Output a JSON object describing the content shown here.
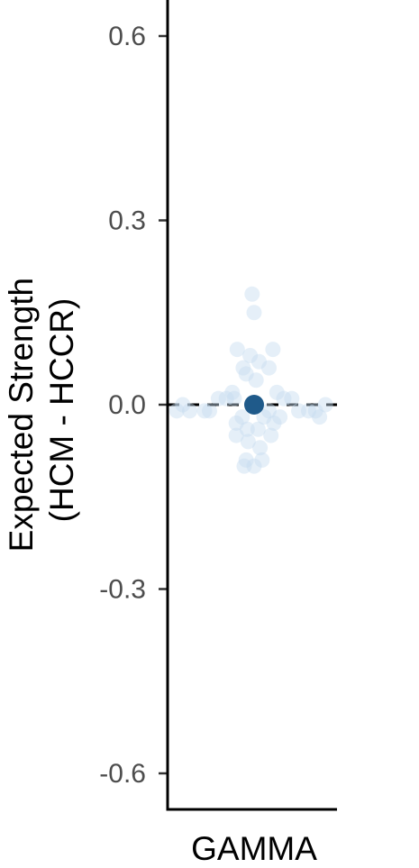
{
  "chart_data": {
    "type": "scatter",
    "ylabel_lines": [
      "Expected Strength",
      "(HCM - HCCR)"
    ],
    "xlabel": "",
    "categories": [
      "GAMMA"
    ],
    "ylim": [
      -0.66,
      0.66
    ],
    "yticks": [
      -0.6,
      -0.3,
      0.0,
      0.3,
      0.6
    ],
    "ytick_labels": [
      "-0.6",
      "-0.3",
      "0.0",
      "0.3",
      "0.6"
    ],
    "reference_line": {
      "y": 0.0,
      "style": "dashed",
      "color": "#000000"
    },
    "grid": false,
    "series": [
      {
        "role": "observations",
        "color": "#c6dbef",
        "category": "GAMMA",
        "points": [
          {
            "dx": -0.02,
            "y": 0.18
          },
          {
            "dx": 0.0,
            "y": 0.15
          },
          {
            "dx": -0.17,
            "y": 0.09
          },
          {
            "dx": 0.19,
            "y": 0.09
          },
          {
            "dx": -0.04,
            "y": 0.08
          },
          {
            "dx": 0.05,
            "y": 0.07
          },
          {
            "dx": -0.11,
            "y": 0.06
          },
          {
            "dx": 0.15,
            "y": 0.06
          },
          {
            "dx": -0.08,
            "y": 0.05
          },
          {
            "dx": 0.02,
            "y": 0.04
          },
          {
            "dx": -0.22,
            "y": 0.02
          },
          {
            "dx": 0.23,
            "y": 0.02
          },
          {
            "dx": -0.36,
            "y": 0.01
          },
          {
            "dx": -0.28,
            "y": 0.01
          },
          {
            "dx": -0.2,
            "y": 0.01
          },
          {
            "dx": 0.3,
            "y": 0.01
          },
          {
            "dx": 0.38,
            "y": 0.01
          },
          {
            "dx": 0.72,
            "y": 0.0
          },
          {
            "dx": -0.72,
            "y": 0.0
          },
          {
            "dx": 0.62,
            "y": -0.01
          },
          {
            "dx": -0.65,
            "y": -0.01
          },
          {
            "dx": 0.45,
            "y": -0.01
          },
          {
            "dx": -0.5,
            "y": -0.01
          },
          {
            "dx": 0.15,
            "y": -0.01
          },
          {
            "dx": -0.45,
            "y": -0.01
          },
          {
            "dx": 0.55,
            "y": -0.01
          },
          {
            "dx": -0.78,
            "y": -0.01
          },
          {
            "dx": 0.66,
            "y": -0.02
          },
          {
            "dx": 0.26,
            "y": -0.02
          },
          {
            "dx": -0.12,
            "y": -0.02
          },
          {
            "dx": 0.1,
            "y": -0.02
          },
          {
            "dx": -0.18,
            "y": -0.03
          },
          {
            "dx": 0.2,
            "y": -0.03
          },
          {
            "dx": -0.07,
            "y": -0.04
          },
          {
            "dx": 0.04,
            "y": -0.04
          },
          {
            "dx": -0.18,
            "y": -0.05
          },
          {
            "dx": 0.17,
            "y": -0.05
          },
          {
            "dx": -0.06,
            "y": -0.06
          },
          {
            "dx": 0.06,
            "y": -0.07
          },
          {
            "dx": -0.08,
            "y": -0.09
          },
          {
            "dx": 0.0,
            "y": -0.1
          },
          {
            "dx": 0.08,
            "y": -0.09
          },
          {
            "dx": -0.1,
            "y": -0.1
          }
        ]
      },
      {
        "role": "mean",
        "color": "#1f5a8a",
        "category": "GAMMA",
        "points": [
          {
            "dx": 0.0,
            "y": 0.0
          }
        ]
      }
    ]
  }
}
